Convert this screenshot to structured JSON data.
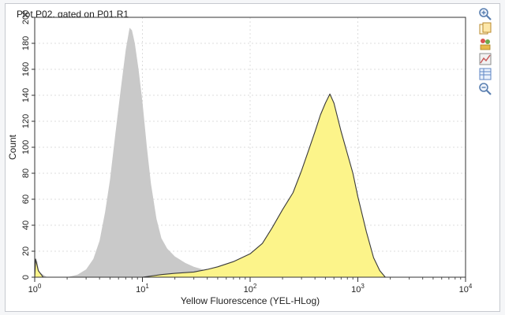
{
  "chart_data": {
    "type": "area",
    "title": "Plot P02, gated on P01.R1",
    "xlabel": "Yellow Fluorescence (YEL-HLog)",
    "ylabel": "Count",
    "xscale": "log",
    "xlim": [
      1,
      10000
    ],
    "ylim": [
      0,
      200
    ],
    "yticks": [
      0,
      20,
      40,
      60,
      80,
      100,
      120,
      140,
      160,
      180,
      200
    ],
    "xticks": [
      {
        "base": "10",
        "exp": "0",
        "value": 1
      },
      {
        "base": "10",
        "exp": "1",
        "value": 10
      },
      {
        "base": "10",
        "exp": "2",
        "value": 100
      },
      {
        "base": "10",
        "exp": "3",
        "value": 1000
      },
      {
        "base": "10",
        "exp": "4",
        "value": 10000
      }
    ],
    "series": [
      {
        "color": "#c9c9c9",
        "outline": "none",
        "points": [
          [
            1.0,
            0
          ],
          [
            1.05,
            13
          ],
          [
            1.1,
            4
          ],
          [
            1.3,
            0
          ],
          [
            2.0,
            0
          ],
          [
            2.5,
            2
          ],
          [
            3.0,
            6
          ],
          [
            3.5,
            14
          ],
          [
            4.0,
            28
          ],
          [
            4.5,
            50
          ],
          [
            5.0,
            75
          ],
          [
            5.6,
            110
          ],
          [
            6.3,
            145
          ],
          [
            7.0,
            175
          ],
          [
            7.6,
            192
          ],
          [
            8.0,
            190
          ],
          [
            8.5,
            180
          ],
          [
            9.2,
            160
          ],
          [
            10.0,
            135
          ],
          [
            11.0,
            100
          ],
          [
            12.0,
            72
          ],
          [
            13.5,
            45
          ],
          [
            15.0,
            30
          ],
          [
            17.0,
            22
          ],
          [
            20.0,
            16
          ],
          [
            25.0,
            11
          ],
          [
            30.0,
            8
          ],
          [
            40.0,
            5
          ],
          [
            50.0,
            3
          ],
          [
            60.0,
            1
          ],
          [
            70.0,
            0
          ]
        ]
      },
      {
        "color": "#fcf48a",
        "outline": "#3a3a3a",
        "points": [
          [
            1.0,
            0
          ],
          [
            1.02,
            14
          ],
          [
            1.08,
            5
          ],
          [
            1.2,
            0
          ],
          [
            10.0,
            0
          ],
          [
            15.0,
            2
          ],
          [
            20.0,
            3
          ],
          [
            30.0,
            4
          ],
          [
            40.0,
            6
          ],
          [
            50.0,
            8
          ],
          [
            70.0,
            12
          ],
          [
            100.0,
            18
          ],
          [
            130.0,
            26
          ],
          [
            160.0,
            38
          ],
          [
            200.0,
            52
          ],
          [
            250.0,
            65
          ],
          [
            300.0,
            82
          ],
          [
            350.0,
            98
          ],
          [
            400.0,
            112
          ],
          [
            450.0,
            125
          ],
          [
            500.0,
            134
          ],
          [
            550.0,
            141
          ],
          [
            600.0,
            134
          ],
          [
            700.0,
            112
          ],
          [
            800.0,
            95
          ],
          [
            900.0,
            80
          ],
          [
            1000.0,
            62
          ],
          [
            1200.0,
            35
          ],
          [
            1400.0,
            15
          ],
          [
            1600.0,
            5
          ],
          [
            1800.0,
            0
          ]
        ]
      }
    ]
  },
  "toolbar": {
    "icons": [
      {
        "name": "zoom-in-icon",
        "color": "#5a7fb0"
      },
      {
        "name": "copy-icon",
        "color": "#d9a23a"
      },
      {
        "name": "stats-icon",
        "color": "#6ea84a"
      },
      {
        "name": "overlay-icon",
        "color": "#c75a5a"
      },
      {
        "name": "table-icon",
        "color": "#5f86c4"
      },
      {
        "name": "zoom-out-icon",
        "color": "#5a7fb0"
      }
    ]
  }
}
